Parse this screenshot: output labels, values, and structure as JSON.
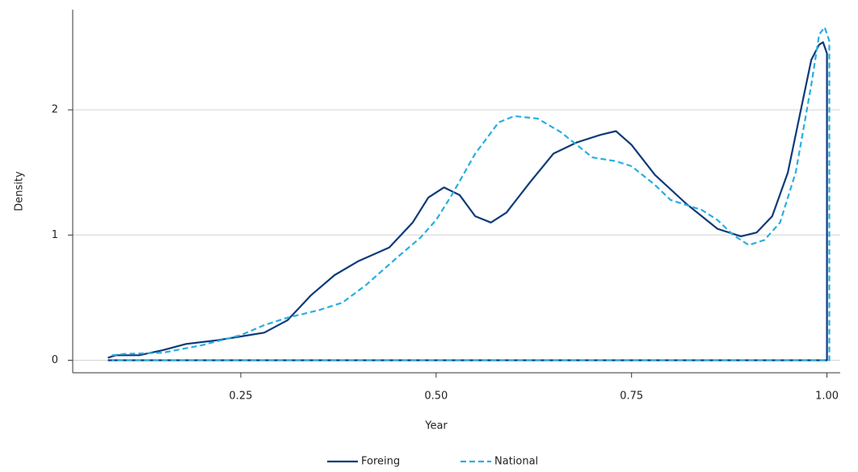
{
  "chart_data": {
    "type": "line",
    "x_label": "Year",
    "y_label": "Density",
    "xlim": [
      0.035,
      1.017
    ],
    "ylim": [
      -0.1,
      2.8
    ],
    "xticks": [
      {
        "value": 0.25,
        "label": "0.25"
      },
      {
        "value": 0.5,
        "label": "0.50"
      },
      {
        "value": 0.75,
        "label": "0.75"
      },
      {
        "value": 1,
        "label": "1.00"
      }
    ],
    "yticks": [
      0,
      1,
      2
    ],
    "grid": true,
    "legend": "bottom",
    "series": [
      {
        "name": "Foreing",
        "color": "#0d3a7a",
        "style": "solid",
        "x": [
          0.08,
          0.09,
          0.12,
          0.15,
          0.18,
          0.22,
          0.25,
          0.28,
          0.31,
          0.34,
          0.37,
          0.4,
          0.44,
          0.47,
          0.49,
          0.51,
          0.53,
          0.55,
          0.57,
          0.59,
          0.62,
          0.65,
          0.68,
          0.71,
          0.73,
          0.75,
          0.78,
          0.82,
          0.86,
          0.89,
          0.91,
          0.93,
          0.95,
          0.97,
          0.98,
          0.99,
          0.995,
          1.0,
          1.0,
          0.08
        ],
        "values": [
          0.02,
          0.04,
          0.04,
          0.08,
          0.13,
          0.16,
          0.19,
          0.22,
          0.32,
          0.52,
          0.68,
          0.79,
          0.9,
          1.1,
          1.3,
          1.38,
          1.32,
          1.15,
          1.1,
          1.18,
          1.42,
          1.65,
          1.74,
          1.8,
          1.83,
          1.72,
          1.48,
          1.25,
          1.05,
          0.99,
          1.02,
          1.15,
          1.5,
          2.1,
          2.4,
          2.52,
          2.54,
          2.45,
          0,
          0
        ]
      },
      {
        "name": "National",
        "color": "#29aee0",
        "style": "dashed",
        "x": [
          0.085,
          0.1,
          0.15,
          0.2,
          0.25,
          0.28,
          0.31,
          0.35,
          0.38,
          0.41,
          0.45,
          0.48,
          0.5,
          0.52,
          0.55,
          0.58,
          0.6,
          0.63,
          0.66,
          0.68,
          0.7,
          0.73,
          0.75,
          0.78,
          0.8,
          0.84,
          0.86,
          0.88,
          0.9,
          0.92,
          0.94,
          0.96,
          0.98,
          0.99,
          0.997,
          1.003,
          1.003,
          0.085
        ],
        "values": [
          0.04,
          0.05,
          0.06,
          0.12,
          0.2,
          0.28,
          0.34,
          0.4,
          0.46,
          0.6,
          0.82,
          0.98,
          1.12,
          1.32,
          1.65,
          1.9,
          1.95,
          1.93,
          1.82,
          1.72,
          1.62,
          1.59,
          1.55,
          1.4,
          1.28,
          1.2,
          1.12,
          1.0,
          0.92,
          0.96,
          1.1,
          1.5,
          2.2,
          2.6,
          2.66,
          2.55,
          0,
          0
        ]
      }
    ]
  }
}
